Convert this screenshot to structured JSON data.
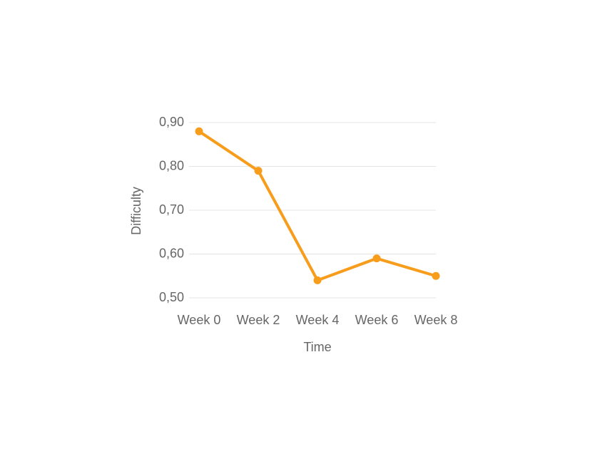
{
  "chart_data": {
    "type": "line",
    "x_label": "Time",
    "y_label": "Difficulty",
    "categories": [
      "Week 0",
      "Week 2",
      "Week 4",
      "Week 6",
      "Week 8"
    ],
    "values": [
      0.88,
      0.79,
      0.54,
      0.59,
      0.55
    ],
    "color": "#f89c1c",
    "ylim": [
      0.5,
      0.9
    ],
    "yticks": [
      {
        "value": 0.5,
        "label": "0,50"
      },
      {
        "value": 0.6,
        "label": "0,60"
      },
      {
        "value": 0.7,
        "label": "0,70"
      },
      {
        "value": 0.8,
        "label": "0,80"
      },
      {
        "value": 0.9,
        "label": "0,90"
      }
    ],
    "grid": true
  }
}
